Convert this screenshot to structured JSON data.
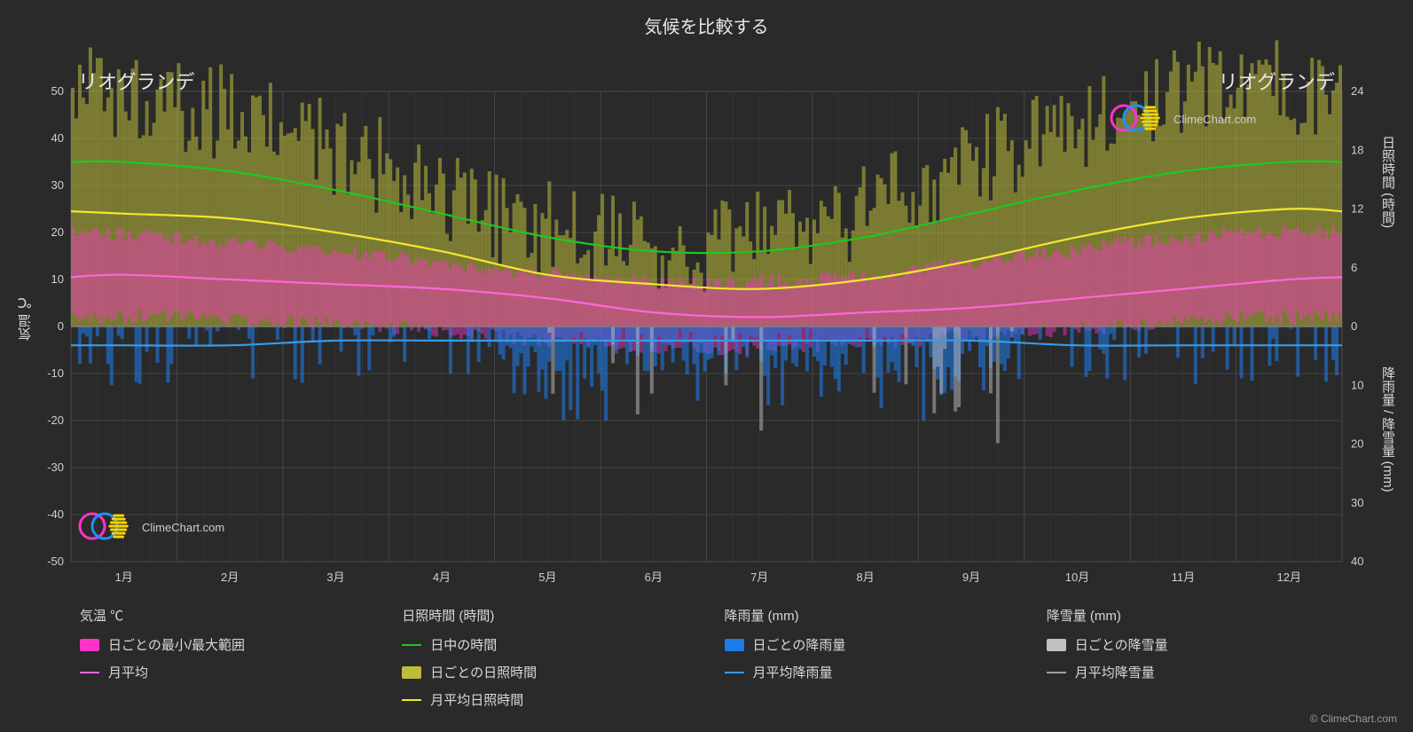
{
  "title": "気候を比較する",
  "location_left": "リオグランデ",
  "location_right": "リオグランデ",
  "credit": "© ClimeChart.com",
  "watermark_text": "ClimeChart.com",
  "axis": {
    "left_label": "気温 ℃",
    "right_top_label": "日照時間 (時間)",
    "right_bot_label": "降雨量 / 降雪量 (mm)",
    "temp_ticks": [
      50,
      40,
      30,
      20,
      10,
      0,
      -10,
      -20,
      -30,
      -40,
      -50
    ],
    "sun_ticks": [
      24,
      18,
      12,
      6,
      0
    ],
    "precip_ticks": [
      0,
      10,
      20,
      30,
      40
    ],
    "months": [
      "1月",
      "2月",
      "3月",
      "4月",
      "5月",
      "6月",
      "7月",
      "8月",
      "9月",
      "10月",
      "11月",
      "12月"
    ]
  },
  "style": {
    "bg": "#2a2a2a",
    "plot_bg": "#2a2a2a",
    "grid": "#4d4d4d",
    "grid_minor": "#3a3a3a",
    "text": "#d8d8d8",
    "baseline": "#808080",
    "temp_range_fill": "#ff33cc",
    "temp_avg_line": "#ff66d9",
    "daylight_line": "#1ec81e",
    "sunshine_avg_line": "#f5e62e",
    "sunshine_daily_fill": "#bdbd3a",
    "rain_daily_fill": "#1e7ae6",
    "rain_avg_line": "#3a9ae6",
    "snow_daily_fill": "#c0c0c0",
    "snow_avg_line": "#a0a0a0",
    "logo_blue": "#1e90ff",
    "line_width": 2.2,
    "bar_opacity": 0.55
  },
  "series": {
    "daylight_monthly": [
      35,
      33,
      29,
      24,
      19,
      16,
      16,
      19,
      24,
      29,
      33,
      35
    ],
    "sunshine_avg_monthly": [
      24,
      23,
      20,
      16,
      11,
      9,
      8,
      10,
      14,
      19,
      23,
      25
    ],
    "temp_avg_monthly": [
      11,
      10,
      9,
      8,
      6,
      3,
      2,
      3,
      4,
      6,
      8,
      10
    ],
    "temp_min_monthly": [
      2,
      2,
      1,
      0,
      -2,
      -4,
      -5,
      -4,
      -3,
      -1,
      0,
      2
    ],
    "temp_max_monthly": [
      20,
      19,
      17,
      15,
      12,
      10,
      9,
      10,
      12,
      15,
      18,
      20
    ],
    "rain_avg_mm_monthly": [
      -4,
      -4,
      -3,
      -3,
      -3,
      -3,
      -3,
      -3,
      -3,
      -4,
      -4,
      -4
    ],
    "snow_avg_mm_monthly": [
      0,
      0,
      0,
      0,
      0,
      0,
      0,
      0,
      0,
      0,
      0,
      0
    ]
  },
  "legend": {
    "cols": [
      {
        "header": "気温 ℃",
        "items": [
          {
            "type": "block",
            "color": "#ff33cc",
            "label": "日ごとの最小/最大範囲"
          },
          {
            "type": "line",
            "color": "#ff66d9",
            "label": "月平均"
          }
        ]
      },
      {
        "header": "日照時間 (時間)",
        "items": [
          {
            "type": "line",
            "color": "#1ec81e",
            "label": "日中の時間"
          },
          {
            "type": "block",
            "color": "#bdbd3a",
            "label": "日ごとの日照時間"
          },
          {
            "type": "line",
            "color": "#f5e62e",
            "label": "月平均日照時間"
          }
        ]
      },
      {
        "header": "降雨量 (mm)",
        "items": [
          {
            "type": "block",
            "color": "#1e7ae6",
            "label": "日ごとの降雨量"
          },
          {
            "type": "line",
            "color": "#3a9ae6",
            "label": "月平均降雨量"
          }
        ]
      },
      {
        "header": "降雪量 (mm)",
        "items": [
          {
            "type": "block",
            "color": "#c0c0c0",
            "label": "日ごとの降雪量"
          },
          {
            "type": "line",
            "color": "#a0a0a0",
            "label": "月平均降雪量"
          }
        ]
      }
    ]
  }
}
